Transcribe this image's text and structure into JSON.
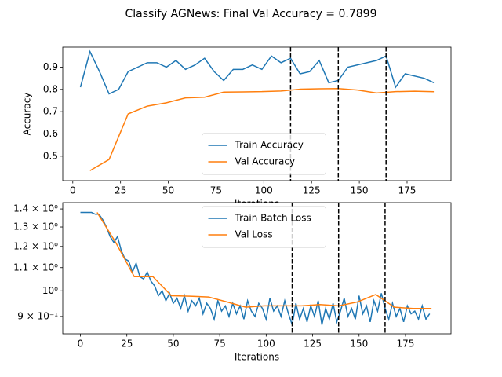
{
  "title": "Classify AGNews: Final Val Accuracy = 0.7899",
  "chart_data": [
    {
      "type": "line",
      "ylabel": "Accuracy",
      "xlabel": "Iterations",
      "xlim": [
        -5.25,
        198
      ],
      "xticks": [
        0,
        25,
        50,
        75,
        100,
        125,
        150,
        175
      ],
      "ylim": [
        0.39,
        0.99
      ],
      "yticks": [
        0.5,
        0.6,
        0.7,
        0.8,
        0.9
      ],
      "legend": "lower center",
      "vlines": [
        114,
        139,
        164
      ],
      "series": [
        {
          "name": "Train Accuracy",
          "color": "#1f77b4",
          "x": [
            4,
            9,
            14,
            19,
            24,
            29,
            34,
            39,
            44,
            49,
            54,
            59,
            64,
            69,
            74,
            79,
            84,
            89,
            94,
            99,
            104,
            109,
            114,
            119,
            124,
            129,
            134,
            139,
            144,
            159,
            164,
            169,
            174,
            184,
            189
          ],
          "values": [
            0.81,
            0.97,
            0.88,
            0.78,
            0.8,
            0.88,
            0.9,
            0.92,
            0.92,
            0.9,
            0.93,
            0.89,
            0.91,
            0.94,
            0.88,
            0.84,
            0.89,
            0.89,
            0.91,
            0.89,
            0.95,
            0.92,
            0.94,
            0.87,
            0.88,
            0.93,
            0.83,
            0.84,
            0.9,
            0.93,
            0.95,
            0.81,
            0.87,
            0.85,
            0.83
          ]
        },
        {
          "name": "Val Accuracy",
          "color": "#ff7f0e",
          "x": [
            9,
            19,
            29,
            39,
            49,
            59,
            69,
            79,
            89,
            99,
            109,
            119,
            129,
            139,
            149,
            159,
            169,
            179,
            189
          ],
          "values": [
            0.435,
            0.485,
            0.69,
            0.725,
            0.74,
            0.762,
            0.765,
            0.788,
            0.789,
            0.79,
            0.793,
            0.801,
            0.803,
            0.804,
            0.797,
            0.784,
            0.79,
            0.792,
            0.7899
          ]
        }
      ]
    },
    {
      "type": "line",
      "xlabel": "Iterations",
      "yscale": "log",
      "xlim": [
        -9.5,
        199.5
      ],
      "xticks": [
        0,
        25,
        50,
        75,
        100,
        125,
        150,
        175
      ],
      "ylim": [
        0.838,
        1.437
      ],
      "yticks": [
        {
          "value": 0.9,
          "label": "9 × 10⁻¹"
        },
        {
          "value": 1.0,
          "label": "10⁰"
        },
        {
          "value": 1.1,
          "label": "1.1 × 10⁰"
        },
        {
          "value": 1.2,
          "label": "1.2 × 10⁰"
        },
        {
          "value": 1.3,
          "label": "1.3 × 10⁰"
        },
        {
          "value": 1.4,
          "label": "1.4 × 10⁰"
        }
      ],
      "legend": "upper center",
      "vlines": [
        114,
        139,
        164
      ],
      "series": [
        {
          "name": "Train Batch Loss",
          "color": "#1f77b4",
          "x": [
            0,
            2,
            4,
            6,
            8,
            10,
            12,
            14,
            16,
            18,
            20,
            22,
            24,
            26,
            28,
            30,
            32,
            34,
            36,
            38,
            40,
            42,
            44,
            46,
            48,
            50,
            52,
            54,
            56,
            58,
            60,
            62,
            64,
            66,
            68,
            70,
            72,
            74,
            76,
            78,
            80,
            82,
            84,
            86,
            88,
            90,
            92,
            94,
            96,
            98,
            100,
            102,
            104,
            106,
            108,
            110,
            112,
            114,
            116,
            118,
            120,
            122,
            124,
            126,
            128,
            130,
            132,
            134,
            136,
            138,
            140,
            142,
            144,
            146,
            148,
            150,
            152,
            154,
            156,
            158,
            160,
            162,
            164,
            166,
            168,
            170,
            172,
            174,
            176,
            178,
            180,
            182,
            184,
            186,
            188
          ],
          "values": [
            1.38,
            1.38,
            1.38,
            1.38,
            1.37,
            1.37,
            1.34,
            1.3,
            1.25,
            1.22,
            1.25,
            1.18,
            1.14,
            1.13,
            1.08,
            1.12,
            1.06,
            1.05,
            1.08,
            1.04,
            1.02,
            0.98,
            1.0,
            0.96,
            0.99,
            0.95,
            0.97,
            0.93,
            0.98,
            0.92,
            0.96,
            0.94,
            0.97,
            0.91,
            0.95,
            0.93,
            0.89,
            0.96,
            0.92,
            0.94,
            0.9,
            0.95,
            0.91,
            0.94,
            0.89,
            0.96,
            0.92,
            0.9,
            0.95,
            0.93,
            0.89,
            0.97,
            0.92,
            0.94,
            0.9,
            0.96,
            0.91,
            0.87,
            0.95,
            0.89,
            0.93,
            0.88,
            0.94,
            0.9,
            0.96,
            0.87,
            0.93,
            0.89,
            0.95,
            0.88,
            0.92,
            0.97,
            0.9,
            0.93,
            0.89,
            0.98,
            0.91,
            0.94,
            0.88,
            0.96,
            0.92,
            0.99,
            0.93,
            0.89,
            0.95,
            0.9,
            0.93,
            0.88,
            0.94,
            0.91,
            0.92,
            0.89,
            0.94,
            0.89,
            0.91
          ]
        },
        {
          "name": "Val Loss",
          "color": "#ff7f0e",
          "x": [
            9,
            19,
            29,
            39,
            49,
            59,
            69,
            79,
            89,
            99,
            109,
            119,
            129,
            139,
            149,
            159,
            169,
            179,
            189
          ],
          "values": [
            1.38,
            1.22,
            1.06,
            1.06,
            0.98,
            0.978,
            0.975,
            0.955,
            0.935,
            0.94,
            0.94,
            0.94,
            0.945,
            0.94,
            0.955,
            0.985,
            0.935,
            0.93,
            0.93
          ]
        }
      ]
    }
  ]
}
